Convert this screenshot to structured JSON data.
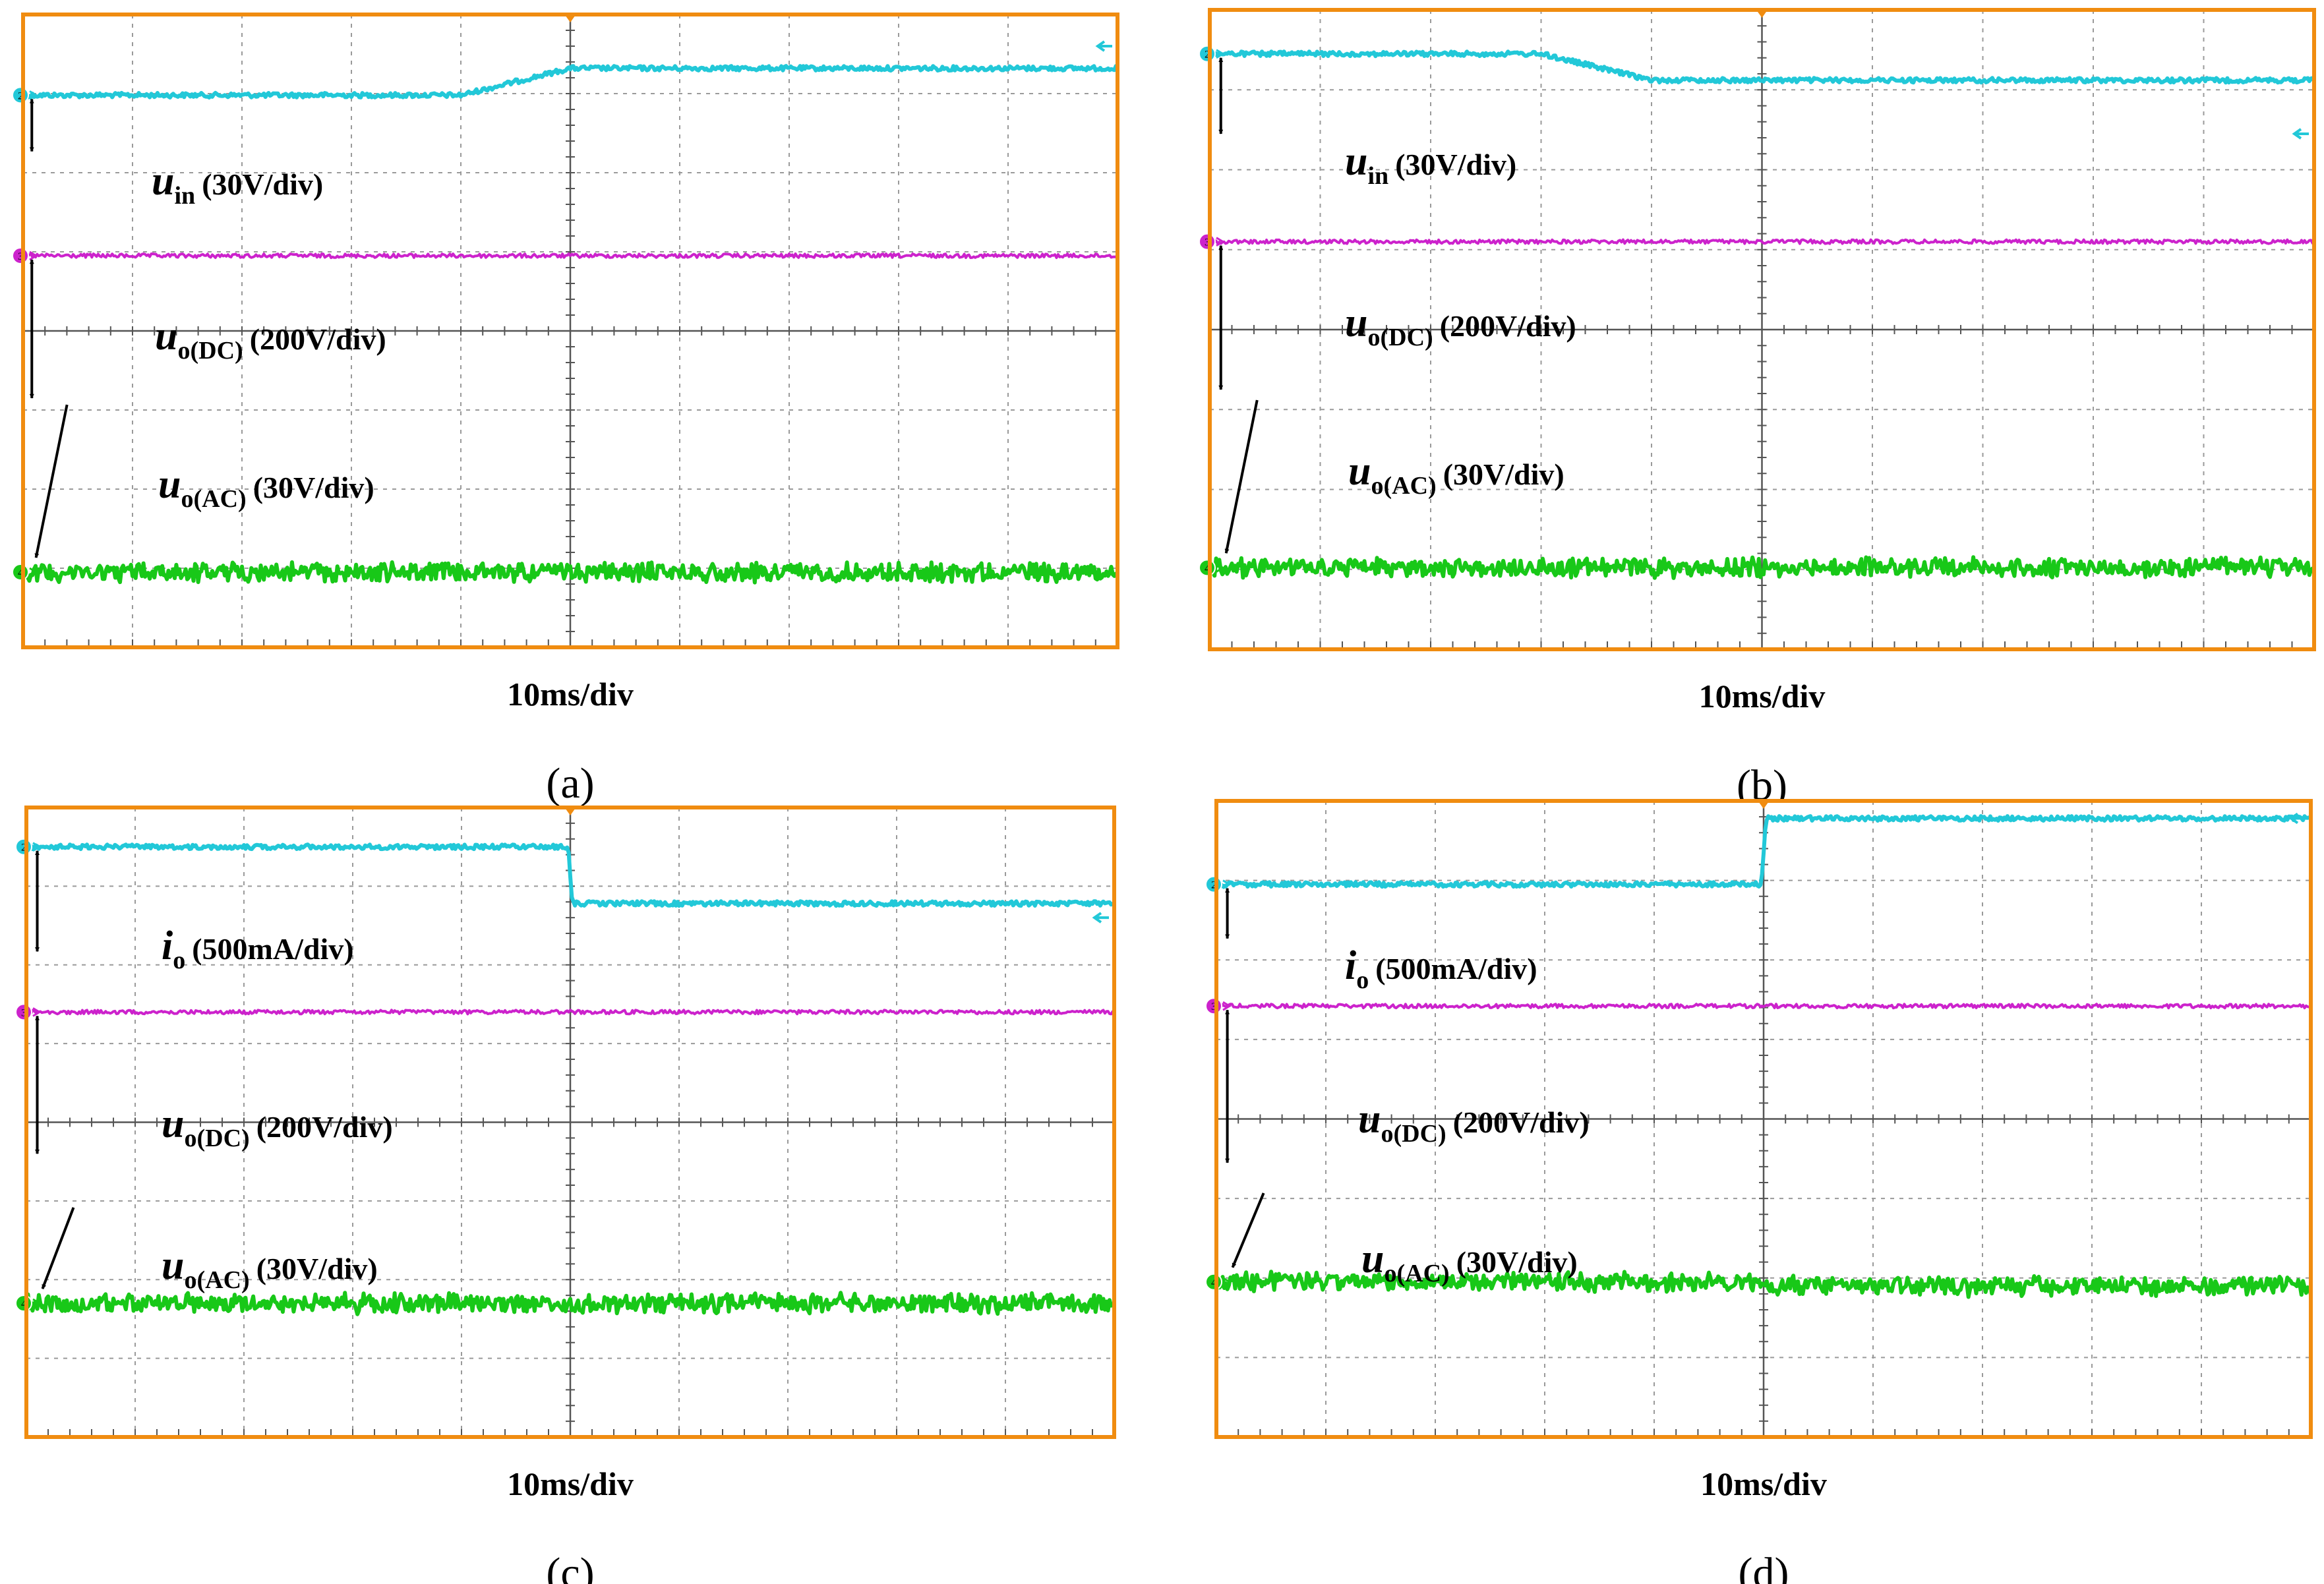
{
  "figure": {
    "panels": [
      {
        "caption": "(a)",
        "time_label": "10ms/div"
      },
      {
        "caption": "(b)",
        "time_label": "10ms/div"
      },
      {
        "caption": "(c)",
        "time_label": "10ms/div"
      },
      {
        "caption": "(d)",
        "time_label": "10ms/div"
      }
    ]
  },
  "colors": {
    "frame": "#f08c10",
    "grid": "#9a9a9a",
    "ch2": "#22c8d8",
    "ch3": "#cc22cc",
    "ch4": "#18c818",
    "text": "#000000"
  },
  "chart_data": [
    {
      "type": "line",
      "title": "(a)",
      "xlabel": "10ms/div",
      "xlim": [
        0,
        10
      ],
      "ylim": [
        -4,
        4
      ],
      "grid": true,
      "series": [
        {
          "name": "u_in",
          "channel": "2",
          "scale": "30V/div",
          "label_main": "u",
          "label_sub": "in",
          "label_scale": "(30V/div)",
          "segments": [
            [
              0,
              2.98
            ],
            [
              4,
              2.98
            ],
            [
              5,
              3.32
            ],
            [
              10,
              3.32
            ]
          ]
        },
        {
          "name": "u_o(DC)",
          "channel": "3",
          "scale": "200V/div",
          "label_main": "u",
          "label_sub": "o(DC)",
          "label_scale": "(200V/div)",
          "segments": [
            [
              0,
              0.95
            ],
            [
              10,
              0.95
            ]
          ]
        },
        {
          "name": "u_o(AC)",
          "channel": "4",
          "scale": "30V/div",
          "label_main": "u",
          "label_sub": "o(AC)",
          "label_scale": "(30V/div)",
          "segments": [
            [
              0,
              -3.05
            ],
            [
              10,
              -3.05
            ]
          ]
        }
      ]
    },
    {
      "type": "line",
      "title": "(b)",
      "xlabel": "10ms/div",
      "xlim": [
        0,
        10
      ],
      "ylim": [
        -4,
        4
      ],
      "grid": true,
      "series": [
        {
          "name": "u_in",
          "channel": "2",
          "scale": "30V/div",
          "label_main": "u",
          "label_sub": "in",
          "label_scale": "(30V/div)",
          "segments": [
            [
              0,
              3.45
            ],
            [
              3,
              3.45
            ],
            [
              4,
              3.12
            ],
            [
              10,
              3.12
            ]
          ]
        },
        {
          "name": "u_o(DC)",
          "channel": "3",
          "scale": "200V/div",
          "label_main": "u",
          "label_sub": "o(DC)",
          "label_scale": "(200V/div)",
          "segments": [
            [
              0,
              1.1
            ],
            [
              10,
              1.1
            ]
          ]
        },
        {
          "name": "u_o(AC)",
          "channel": "4",
          "scale": "30V/div",
          "label_main": "u",
          "label_sub": "o(AC)",
          "label_scale": "(30V/div)",
          "segments": [
            [
              0,
              -2.98
            ],
            [
              10,
              -2.98
            ]
          ]
        }
      ]
    },
    {
      "type": "line",
      "title": "(c)",
      "xlabel": "10ms/div",
      "xlim": [
        0,
        10
      ],
      "ylim": [
        -4,
        4
      ],
      "grid": true,
      "series": [
        {
          "name": "i_o",
          "channel": "2",
          "scale": "500mA/div",
          "label_main": "i",
          "label_sub": "o",
          "label_scale": "(500mA/div)",
          "segments": [
            [
              0,
              3.5
            ],
            [
              4.98,
              3.5
            ],
            [
              5.02,
              2.78
            ],
            [
              10,
              2.78
            ]
          ]
        },
        {
          "name": "u_o(DC)",
          "channel": "3",
          "scale": "200V/div",
          "label_main": "u",
          "label_sub": "o(DC)",
          "label_scale": "(200V/div)",
          "segments": [
            [
              0,
              1.4
            ],
            [
              10,
              1.4
            ]
          ]
        },
        {
          "name": "u_o(AC)",
          "channel": "4",
          "scale": "30V/div",
          "label_main": "u",
          "label_sub": "o(AC)",
          "label_scale": "(30V/div)",
          "segments": [
            [
              0,
              -2.3
            ],
            [
              10,
              -2.3
            ]
          ]
        }
      ]
    },
    {
      "type": "line",
      "title": "(d)",
      "xlabel": "10ms/div",
      "xlim": [
        0,
        10
      ],
      "ylim": [
        -4,
        4
      ],
      "grid": true,
      "series": [
        {
          "name": "i_o",
          "channel": "2",
          "scale": "500mA/div",
          "label_main": "i",
          "label_sub": "o",
          "label_scale": "(500mA/div)",
          "segments": [
            [
              0,
              2.95
            ],
            [
              4.98,
              2.95
            ],
            [
              5.02,
              3.78
            ],
            [
              10,
              3.78
            ]
          ]
        },
        {
          "name": "u_o(DC)",
          "channel": "3",
          "scale": "200V/div",
          "label_main": "u",
          "label_sub": "o(DC)",
          "label_scale": "(200V/div)",
          "segments": [
            [
              0,
              1.42
            ],
            [
              10,
              1.42
            ]
          ]
        },
        {
          "name": "u_o(AC)",
          "channel": "4",
          "scale": "30V/div",
          "label_main": "u",
          "label_sub": "o(AC)",
          "label_scale": "(30V/div)",
          "segments": [
            [
              0,
              -2.05
            ],
            [
              5,
              -2.05
            ],
            [
              5.02,
              -2.1
            ],
            [
              10,
              -2.1
            ]
          ]
        }
      ]
    }
  ]
}
